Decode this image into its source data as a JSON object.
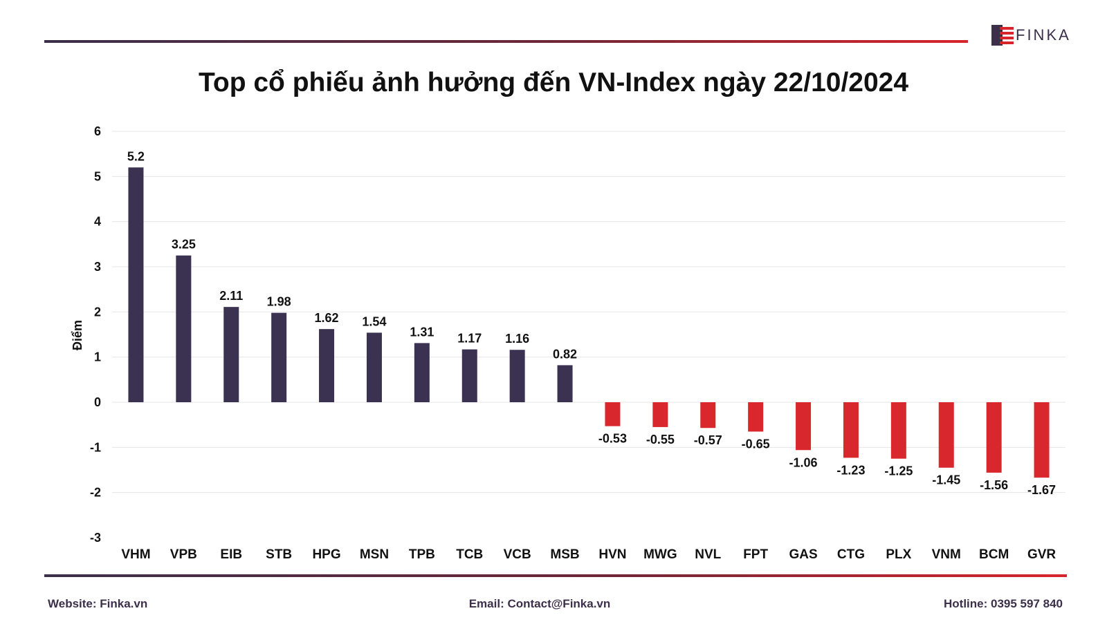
{
  "brand": {
    "name": "FINKA"
  },
  "colors": {
    "positive": "#3b3150",
    "negative": "#d8282d",
    "accent_dark": "#3b2f4a",
    "accent_red": "#d8242b",
    "grid": "#e6e6e6"
  },
  "footer": {
    "website": "Website: Finka.vn",
    "email": "Email: Contact@Finka.vn",
    "hotline": "Hotline: 0395 597 840"
  },
  "chart_data": {
    "type": "bar",
    "title": "Top cổ phiếu ảnh hưởng đến VN-Index ngày 22/10/2024",
    "xlabel": "",
    "ylabel": "Điểm",
    "ylim": [
      -3,
      6
    ],
    "yticks": [
      "6",
      "5",
      "4",
      "3",
      "2",
      "1",
      "0",
      "-1",
      "-2",
      "-3"
    ],
    "categories": [
      "VHM",
      "VPB",
      "EIB",
      "STB",
      "HPG",
      "MSN",
      "TPB",
      "TCB",
      "VCB",
      "MSB",
      "HVN",
      "MWG",
      "NVL",
      "FPT",
      "GAS",
      "CTG",
      "PLX",
      "VNM",
      "BCM",
      "GVR"
    ],
    "values": [
      5.2,
      3.25,
      2.11,
      1.98,
      1.62,
      1.54,
      1.31,
      1.17,
      1.16,
      0.82,
      -0.53,
      -0.55,
      -0.57,
      -0.65,
      -1.06,
      -1.23,
      -1.25,
      -1.45,
      -1.56,
      -1.67
    ],
    "data_labels": [
      "5.2",
      "3.25",
      "2.11",
      "1.98",
      "1.62",
      "1.54",
      "1.31",
      "1.17",
      "1.16",
      "0.82",
      "-0.53",
      "-0.55",
      "-0.57",
      "-0.65",
      "-1.06",
      "-1.23",
      "-1.25",
      "-1.45",
      "-1.56",
      "-1.67"
    ],
    "grid": true,
    "legend": "none"
  }
}
